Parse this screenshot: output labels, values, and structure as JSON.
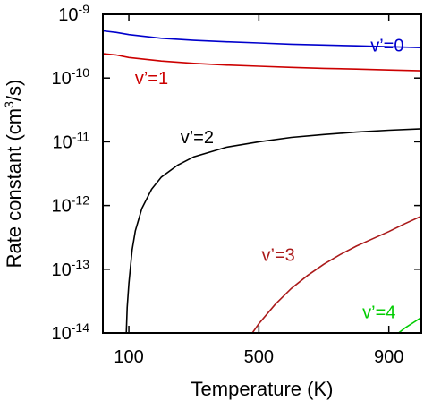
{
  "chart_data": {
    "type": "line",
    "title": "",
    "xlabel": "Temperature (K)",
    "ylabel": "Rate constant (cm³/s)",
    "xlim": [
      20,
      1000
    ],
    "ylim": [
      1e-14,
      1e-09
    ],
    "y_scale": "log",
    "grid": false,
    "x_ticks": [
      {
        "value": 100,
        "label": "100"
      },
      {
        "value": 500,
        "label": "500"
      },
      {
        "value": 900,
        "label": "900"
      }
    ],
    "y_ticks": [
      {
        "value": 1e-14,
        "base": "10",
        "exp": "-14"
      },
      {
        "value": 1e-13,
        "base": "10",
        "exp": "-13"
      },
      {
        "value": 1e-12,
        "base": "10",
        "exp": "-12"
      },
      {
        "value": 1e-11,
        "base": "10",
        "exp": "-11"
      },
      {
        "value": 1e-10,
        "base": "10",
        "exp": "-10"
      },
      {
        "value": 1e-09,
        "base": "10",
        "exp": "-9"
      }
    ],
    "series": [
      {
        "name": "v’=0",
        "color": "#0000cc",
        "label_at": [
          895,
          2.6e-10
        ],
        "label_anchor": "middle",
        "points": [
          [
            20,
            5.5e-10
          ],
          [
            60,
            5.2e-10
          ],
          [
            100,
            4.8e-10
          ],
          [
            200,
            4.2e-10
          ],
          [
            300,
            3.9e-10
          ],
          [
            400,
            3.7e-10
          ],
          [
            500,
            3.55e-10
          ],
          [
            600,
            3.4e-10
          ],
          [
            700,
            3.3e-10
          ],
          [
            800,
            3.2e-10
          ],
          [
            900,
            3.1e-10
          ],
          [
            1000,
            3e-10
          ]
        ]
      },
      {
        "name": "v’=1",
        "color": "#cc0000",
        "label_at": [
          170,
          8e-11
        ],
        "label_anchor": "middle",
        "points": [
          [
            20,
            2.4e-10
          ],
          [
            60,
            2.3e-10
          ],
          [
            100,
            2.1e-10
          ],
          [
            200,
            1.85e-10
          ],
          [
            300,
            1.7e-10
          ],
          [
            400,
            1.6e-10
          ],
          [
            500,
            1.53e-10
          ],
          [
            600,
            1.47e-10
          ],
          [
            700,
            1.42e-10
          ],
          [
            800,
            1.38e-10
          ],
          [
            900,
            1.34e-10
          ],
          [
            1000,
            1.3e-10
          ]
        ]
      },
      {
        "name": "v’=2",
        "color": "#000000",
        "label_at": [
          310,
          9.5e-12
        ],
        "label_anchor": "middle",
        "points": [
          [
            92,
            1e-14
          ],
          [
            95,
            2.5e-14
          ],
          [
            100,
            6e-14
          ],
          [
            110,
            2e-13
          ],
          [
            120,
            4e-13
          ],
          [
            140,
            9e-13
          ],
          [
            170,
            1.8e-12
          ],
          [
            200,
            2.8e-12
          ],
          [
            250,
            4.3e-12
          ],
          [
            300,
            5.8e-12
          ],
          [
            400,
            8.2e-12
          ],
          [
            500,
            1e-11
          ],
          [
            600,
            1.17e-11
          ],
          [
            700,
            1.3e-11
          ],
          [
            800,
            1.42e-11
          ],
          [
            900,
            1.52e-11
          ],
          [
            1000,
            1.6e-11
          ]
        ]
      },
      {
        "name": "v’=3",
        "color": "#aa1a1a",
        "label_at": [
          560,
          1.35e-13
        ],
        "label_anchor": "middle",
        "points": [
          [
            480,
            1e-14
          ],
          [
            500,
            1.4e-14
          ],
          [
            550,
            2.8e-14
          ],
          [
            600,
            5e-14
          ],
          [
            650,
            8e-14
          ],
          [
            700,
            1.2e-13
          ],
          [
            750,
            1.7e-13
          ],
          [
            800,
            2.3e-13
          ],
          [
            850,
            3e-13
          ],
          [
            900,
            3.9e-13
          ],
          [
            950,
            5.2e-13
          ],
          [
            1000,
            6.8e-13
          ]
        ]
      },
      {
        "name": "v’=4",
        "color": "#00cc00",
        "label_at": [
          870,
          1.7e-14
        ],
        "label_anchor": "middle",
        "points": [
          [
            930,
            1e-14
          ],
          [
            950,
            1.2e-14
          ],
          [
            975,
            1.45e-14
          ],
          [
            1000,
            1.75e-14
          ]
        ]
      }
    ]
  }
}
